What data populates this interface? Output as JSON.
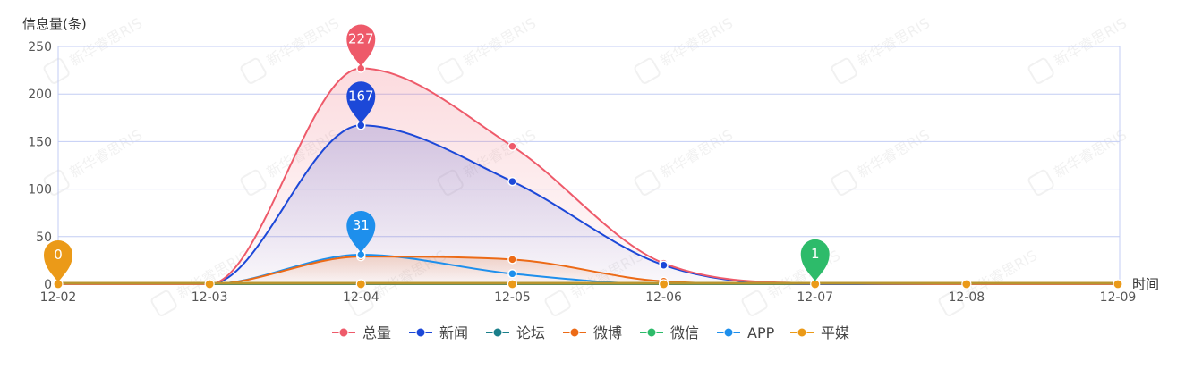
{
  "chart_data": {
    "type": "line",
    "ylabel": "信息量(条)",
    "xlabel": "时间",
    "categories": [
      "12-02",
      "12-03",
      "12-04",
      "12-05",
      "12-06",
      "12-07",
      "12-08",
      "12-09"
    ],
    "ylim": [
      0,
      250
    ],
    "yticks": [
      0,
      50,
      100,
      150,
      200,
      250
    ],
    "grid": true,
    "legend_position": "bottom-center",
    "series": [
      {
        "name": "总量",
        "color": "#ee5a6a",
        "values": [
          0,
          0,
          227,
          145,
          22,
          1,
          0,
          0
        ],
        "area": true
      },
      {
        "name": "新闻",
        "color": "#1c48d8",
        "values": [
          0,
          0,
          167,
          108,
          20,
          0,
          0,
          0
        ],
        "area": true
      },
      {
        "name": "论坛",
        "color": "#1a7f8a",
        "values": [
          0,
          0,
          0,
          0,
          0,
          0,
          0,
          0
        ],
        "area": false
      },
      {
        "name": "微博",
        "color": "#ec6a16",
        "values": [
          0,
          0,
          29,
          26,
          3,
          0,
          0,
          0
        ],
        "area": true
      },
      {
        "name": "微信",
        "color": "#2dbb6a",
        "values": [
          0,
          0,
          0,
          0,
          0,
          1,
          0,
          0
        ],
        "area": false
      },
      {
        "name": "APP",
        "color": "#1e8fec",
        "values": [
          0,
          0,
          31,
          11,
          0,
          0,
          0,
          0
        ],
        "area": false
      },
      {
        "name": "平媒",
        "color": "#eb9a18",
        "values": [
          0,
          0,
          0,
          0,
          0,
          0,
          0,
          0
        ],
        "area": false
      }
    ],
    "annotations": [
      {
        "series": "总量",
        "category": "12-04",
        "label": "227",
        "color": "#ee5a6a"
      },
      {
        "series": "新闻",
        "category": "12-04",
        "label": "167",
        "color": "#1c48d8"
      },
      {
        "series": "APP",
        "category": "12-04",
        "label": "31",
        "color": "#1e8fec"
      },
      {
        "series": "平媒",
        "category": "12-02",
        "label": "0",
        "color": "#eb9a18"
      },
      {
        "series": "微信",
        "category": "12-07",
        "label": "1",
        "color": "#2dbb6a"
      }
    ],
    "watermark": "新华睿思RIS"
  }
}
